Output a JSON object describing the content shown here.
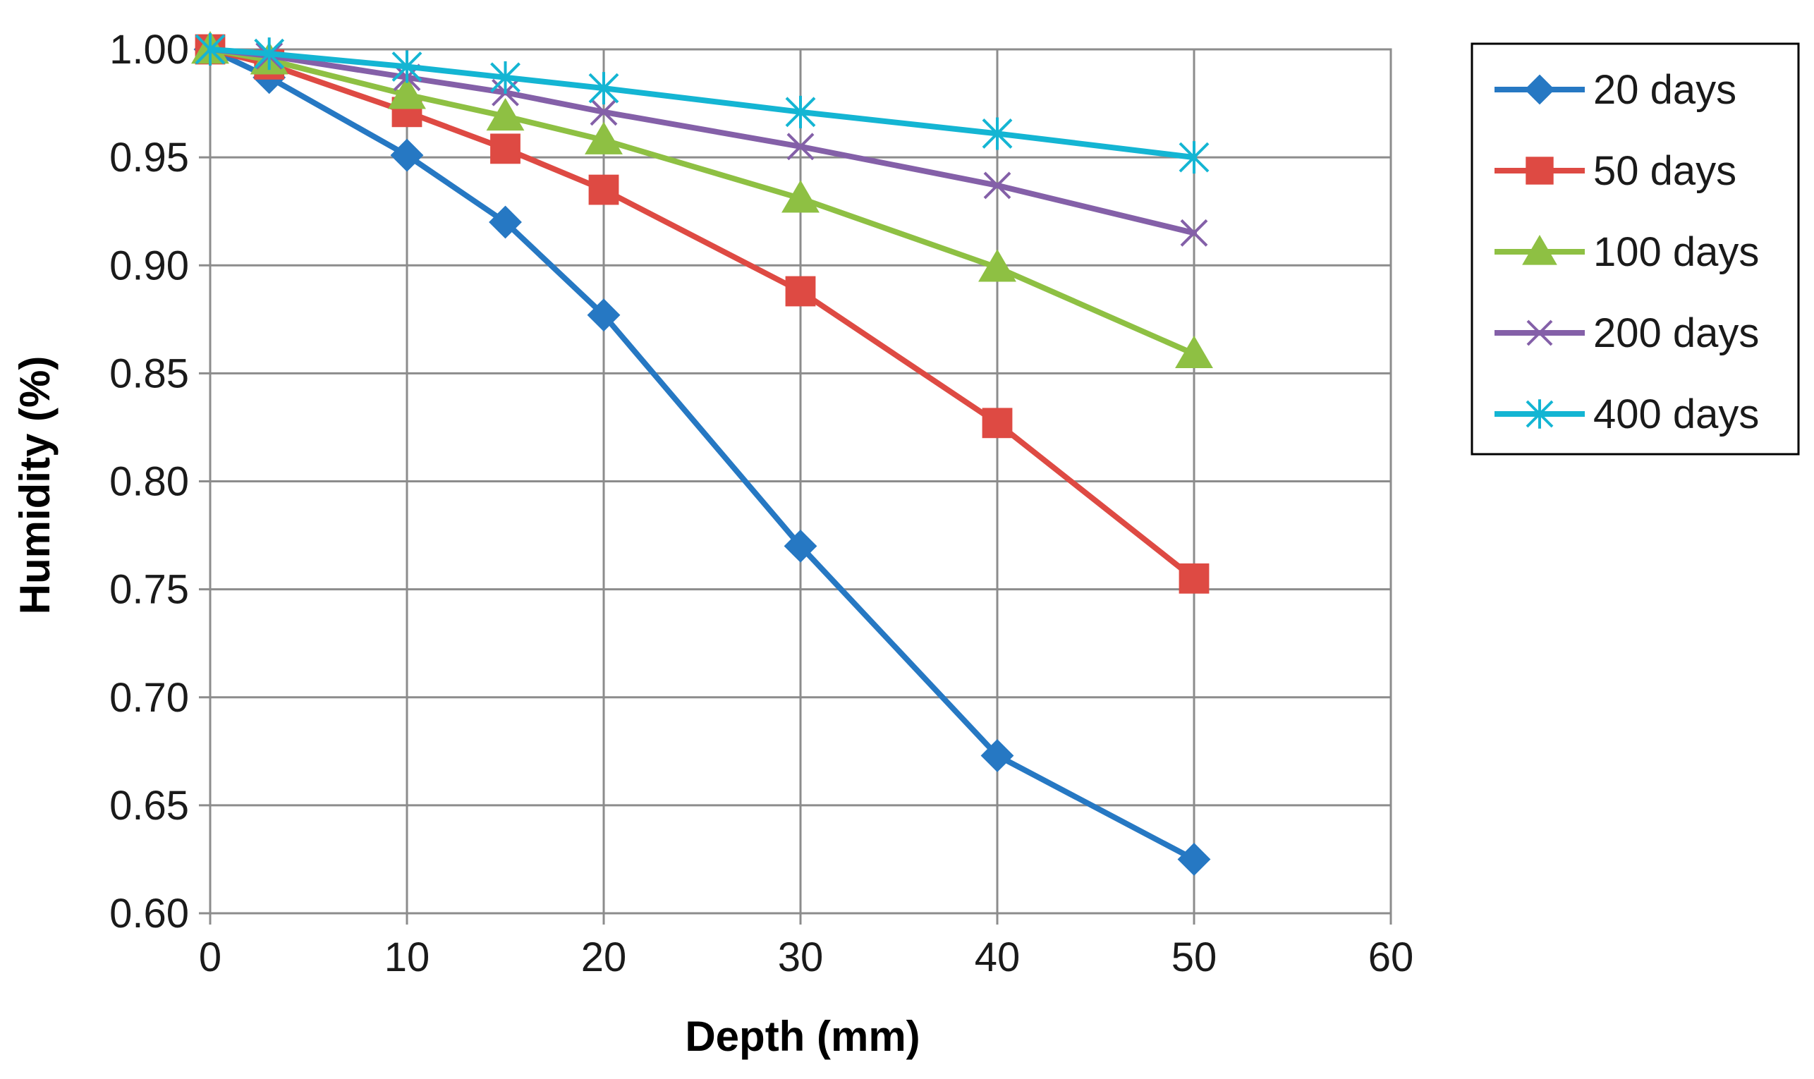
{
  "chart_data": {
    "type": "line",
    "title": "",
    "xlabel": "Depth (mm)",
    "ylabel": "Humidity (%)",
    "xlim": [
      0,
      60
    ],
    "ylim": [
      0.6,
      1.0
    ],
    "xticks": [
      0,
      10,
      20,
      30,
      40,
      50,
      60
    ],
    "xtick_labels": [
      "0",
      "10",
      "20",
      "30",
      "40",
      "50",
      "60"
    ],
    "yticks": [
      0.6,
      0.65,
      0.7,
      0.75,
      0.8,
      0.85,
      0.9,
      0.95,
      1.0
    ],
    "ytick_labels": [
      "0.60",
      "0.65",
      "0.70",
      "0.75",
      "0.80",
      "0.85",
      "0.90",
      "0.95",
      "1.00"
    ],
    "grid": true,
    "legend_position": "right",
    "x": [
      0,
      3,
      10,
      15,
      20,
      30,
      40,
      50
    ],
    "series": [
      {
        "name": "20 days",
        "color": "#2678c3",
        "marker": "diamond",
        "values": [
          1.0,
          0.987,
          0.951,
          0.92,
          0.877,
          0.77,
          0.673,
          0.625
        ]
      },
      {
        "name": "50 days",
        "color": "#de4a43",
        "marker": "square",
        "values": [
          1.0,
          0.993,
          0.971,
          0.954,
          0.935,
          0.888,
          0.827,
          0.755
        ]
      },
      {
        "name": "100 days",
        "color": "#8ec043",
        "marker": "triangle",
        "values": [
          1.0,
          0.995,
          0.979,
          0.969,
          0.958,
          0.931,
          0.899,
          0.859
        ]
      },
      {
        "name": "200 days",
        "color": "#8460a8",
        "marker": "x",
        "values": [
          1.0,
          0.997,
          0.987,
          0.98,
          0.971,
          0.955,
          0.937,
          0.915
        ]
      },
      {
        "name": "400 days",
        "color": "#14b5d3",
        "marker": "asterisk",
        "values": [
          1.0,
          0.998,
          0.992,
          0.987,
          0.982,
          0.971,
          0.961,
          0.95
        ]
      }
    ]
  }
}
